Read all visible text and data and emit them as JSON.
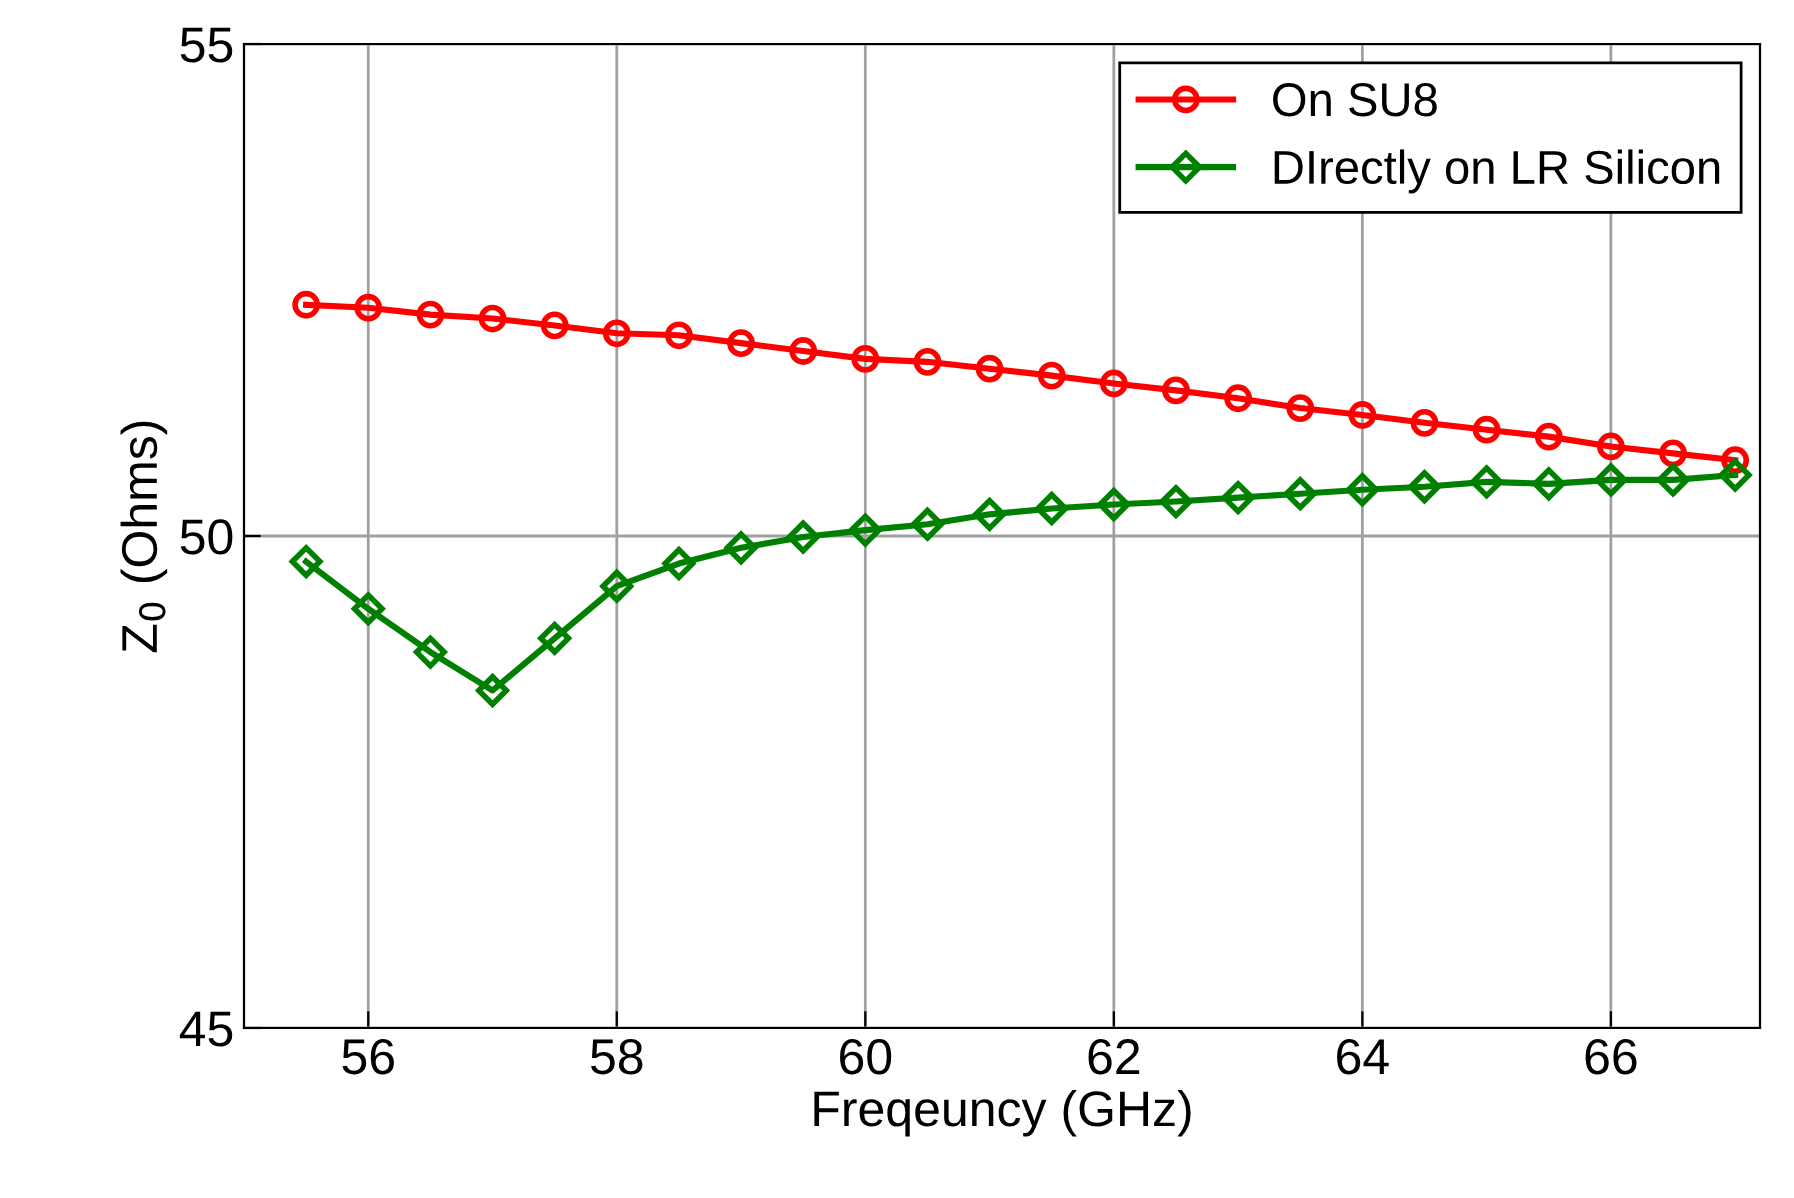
{
  "chart_data": {
    "type": "line",
    "xlabel": "Freqeuncy (GHz)",
    "ylabel": "Z$_{0}$ (Ohms)",
    "x": [
      55.5,
      56,
      56.5,
      57,
      57.5,
      58,
      58.5,
      59,
      59.5,
      60,
      60.5,
      61,
      61.5,
      62,
      62.5,
      63,
      63.5,
      64,
      64.5,
      65,
      65.5,
      66,
      66.5,
      67
    ],
    "series": [
      {
        "name": "On SU8",
        "color": "#ff0000",
        "marker": "circle",
        "values": [
          52.35,
          52.32,
          52.25,
          52.21,
          52.14,
          52.06,
          52.04,
          51.96,
          51.88,
          51.8,
          51.77,
          51.7,
          51.63,
          51.55,
          51.48,
          51.4,
          51.3,
          51.23,
          51.15,
          51.08,
          51.01,
          50.91,
          50.84,
          50.77
        ]
      },
      {
        "name": "DIrectly on LR Silicon",
        "color": "#008000",
        "marker": "diamond",
        "values": [
          49.74,
          49.26,
          48.82,
          48.43,
          48.96,
          49.49,
          49.72,
          49.88,
          49.99,
          50.06,
          50.12,
          50.22,
          50.28,
          50.32,
          50.35,
          50.39,
          50.43,
          50.47,
          50.5,
          50.55,
          50.53,
          50.57,
          50.57,
          50.62
        ]
      }
    ],
    "xlim": [
      55,
      67.2
    ],
    "ylim": [
      45,
      55
    ],
    "xticks": [
      56,
      58,
      60,
      62,
      64,
      66
    ],
    "yticks": [
      45,
      50,
      55
    ],
    "grid": true,
    "legend": "top right",
    "line_style": "solid"
  }
}
